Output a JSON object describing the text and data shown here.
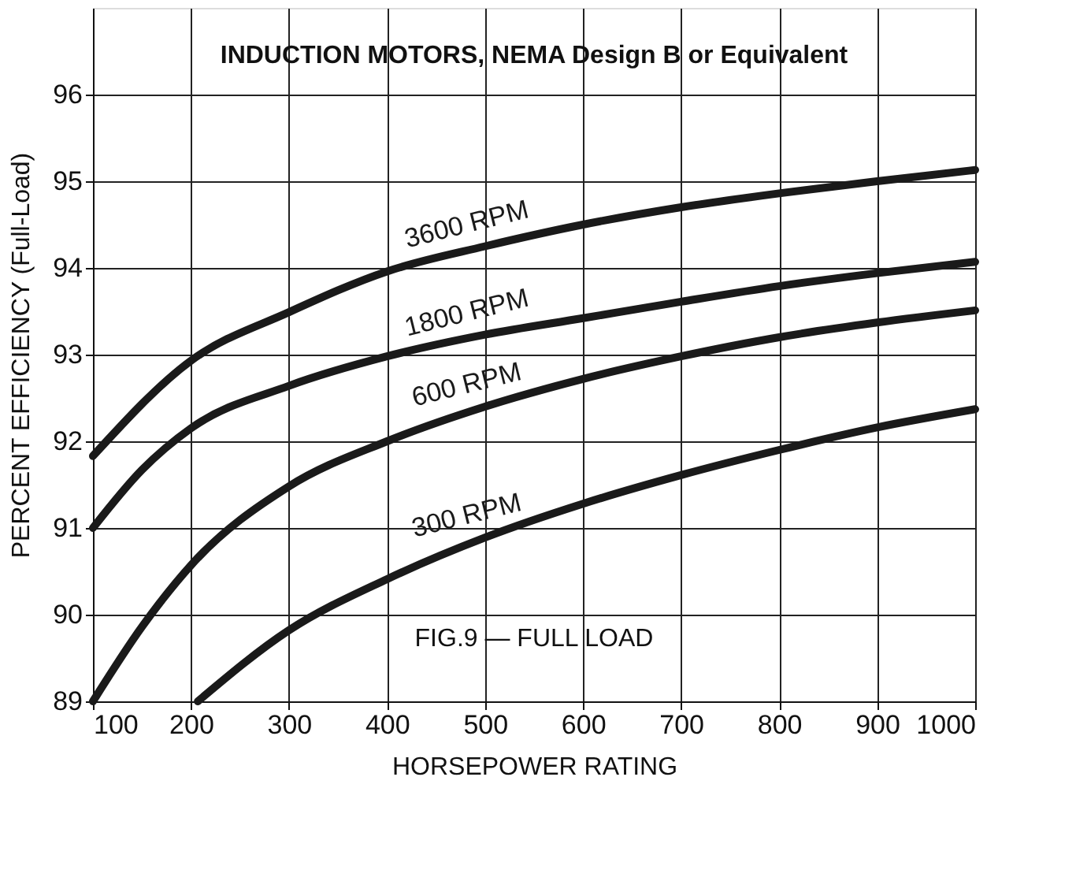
{
  "chart_data": {
    "type": "line",
    "title": "INDUCTION MOTORS, NEMA Design B or Equivalent",
    "xlabel": "HORSEPOWER RATING",
    "ylabel": "PERCENT EFFICIENCY (Full-Load)",
    "xlim": [
      100,
      1000
    ],
    "xticks": [
      100,
      200,
      300,
      400,
      500,
      600,
      700,
      800,
      900,
      1000
    ],
    "ylim": [
      89,
      97
    ],
    "yticks": [
      89,
      90,
      91,
      92,
      93,
      94,
      95,
      96
    ],
    "grid": true,
    "legend": false,
    "marker": "none",
    "line_style": "solid",
    "annotations": [
      "FIG.9 — FULL LOAD"
    ],
    "series": [
      {
        "name": "3600 RPM",
        "color": "#1a1a1a",
        "x": [
          100,
          200,
          300,
          400,
          500,
          600,
          700,
          800,
          900,
          1000
        ],
        "values": [
          91.83,
          92.93,
          93.49,
          93.96,
          94.25,
          94.5,
          94.7,
          94.86,
          95.0,
          95.13
        ]
      },
      {
        "name": "1800 RPM",
        "color": "#1a1a1a",
        "x": [
          100,
          150,
          200,
          300,
          400,
          500,
          600,
          700,
          800,
          900,
          1000
        ],
        "values": [
          91.0,
          91.67,
          92.15,
          92.64,
          92.98,
          93.23,
          93.42,
          93.61,
          93.79,
          93.94,
          94.07
        ]
      },
      {
        "name": "600 RPM",
        "color": "#1a1a1a",
        "x": [
          100,
          150,
          200,
          300,
          400,
          500,
          600,
          700,
          800,
          900,
          1000
        ],
        "values": [
          89.0,
          89.86,
          90.57,
          91.48,
          92.0,
          92.4,
          92.72,
          92.98,
          93.2,
          93.37,
          93.51
        ]
      },
      {
        "name": "300 RPM",
        "color": "#1a1a1a",
        "x": [
          207,
          300,
          400,
          500,
          600,
          700,
          800,
          900,
          1000
        ],
        "values": [
          89.0,
          89.82,
          90.41,
          90.89,
          91.28,
          91.61,
          91.9,
          92.16,
          92.37
        ]
      }
    ]
  }
}
